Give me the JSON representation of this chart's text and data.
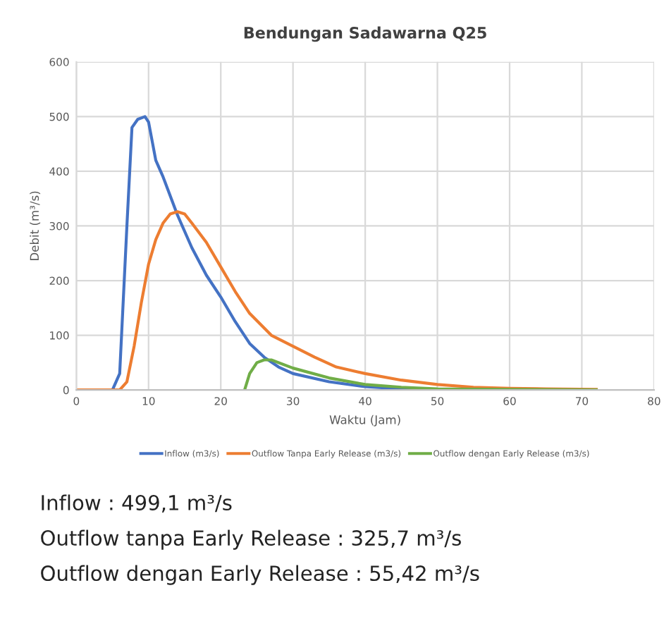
{
  "chart_data": {
    "type": "line",
    "title": "Bendungan Sadawarna Q25",
    "xlabel": "Waktu (Jam)",
    "ylabel": "Debit (m³/s)",
    "xlim": [
      0,
      80
    ],
    "xticks": [
      0,
      10,
      20,
      30,
      40,
      50,
      60,
      70,
      80
    ],
    "ylim": [
      0,
      600
    ],
    "yticks": [
      0,
      100,
      200,
      300,
      400,
      500,
      600
    ],
    "grid": true,
    "legend": "bottom",
    "marker": "none",
    "line_style": "solid",
    "series": [
      {
        "name": "Inflow (m3/s)",
        "color": "#4472c4",
        "x": [
          0,
          5,
          6,
          7,
          7.7,
          8.5,
          9.5,
          10,
          11,
          12,
          14,
          16,
          18,
          20,
          22,
          24,
          26,
          28,
          30,
          35,
          40,
          45,
          50
        ],
        "values": [
          0,
          0,
          30,
          300,
          480,
          495,
          500,
          490,
          420,
          390,
          320,
          260,
          210,
          170,
          125,
          85,
          60,
          42,
          30,
          15,
          6,
          2,
          1
        ]
      },
      {
        "name": "Outflow Tanpa Early Release (m3/s)",
        "color": "#ed7d31",
        "x": [
          0,
          6,
          7,
          8,
          9,
          10,
          11,
          12,
          13,
          14,
          15,
          16,
          18,
          20,
          22,
          24,
          27,
          30,
          33,
          36,
          40,
          45,
          50,
          55,
          60,
          65,
          72
        ],
        "values": [
          0,
          0,
          15,
          80,
          160,
          230,
          275,
          305,
          322,
          326,
          322,
          305,
          270,
          225,
          180,
          140,
          100,
          80,
          60,
          42,
          30,
          18,
          10,
          5,
          3,
          2,
          1
        ]
      },
      {
        "name": "Outflow dengan Early Release (m3/s)",
        "color": "#70ad47",
        "x": [
          23.3,
          24,
          25,
          26,
          27,
          30,
          35,
          40,
          45,
          50,
          60,
          72
        ],
        "values": [
          0,
          30,
          50,
          55,
          55,
          40,
          22,
          10,
          5,
          2,
          1,
          0
        ]
      }
    ],
    "annotations": [
      "Inflow : 499,1 m³/s",
      "Outflow tanpa Early Release : 325,7 m³/s",
      "Outflow dengan Early Release : 55,42 m³/s"
    ]
  }
}
